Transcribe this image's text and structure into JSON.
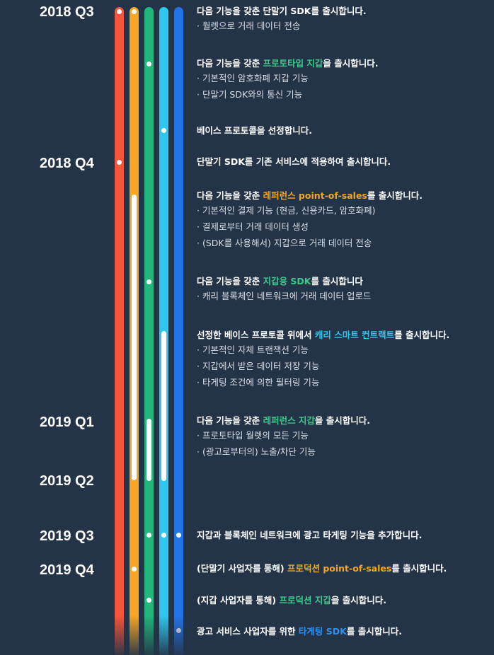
{
  "colors": {
    "background": "#243448",
    "track_red": "#f5553a",
    "track_orange": "#f5a623",
    "track_green": "#22b77a",
    "track_cyan": "#2ec8ee",
    "track_blue": "#2473e6",
    "highlight_green": "#3ec98a",
    "highlight_orange": "#f5a623",
    "highlight_cyan": "#2fc6ee",
    "highlight_blue": "#2f8ff0"
  },
  "quarters": [
    "2018 Q3",
    "2018 Q4",
    "2019 Q1",
    "2019 Q2",
    "2019 Q3",
    "2019 Q4"
  ],
  "entries": [
    {
      "title_pre": "다음 기능을 갖춘 단말기 SDK를 출시합니다.",
      "title_hl": "",
      "title_post": "",
      "hl": "",
      "items": [
        "· 월렛으로 거래 데이터 전송"
      ]
    },
    {
      "title_pre": "다음 기능을 갖춘 ",
      "title_hl": "프로토타입 지갑",
      "title_post": "을 출시합니다.",
      "hl": "green",
      "items": [
        "· 기본적인 암호화폐 지갑 기능",
        "· 단말기 SDK와의 통신 기능"
      ]
    },
    {
      "title_pre": "베이스 프로토콜을 선정합니다.",
      "title_hl": "",
      "title_post": "",
      "hl": "",
      "items": []
    },
    {
      "title_pre": "단말기 SDK를 기존 서비스에 적용하여 출시합니다.",
      "title_hl": "",
      "title_post": "",
      "hl": "",
      "items": []
    },
    {
      "title_pre": "다음 기능을 갖춘 ",
      "title_hl": "레퍼런스 point-of-sales",
      "title_post": "를 출시합니다.",
      "hl": "orange",
      "items": [
        "· 기본적인 결제 기능 (현금, 신용카드, 암호화폐)",
        "· 결제로부터 거래 데이터 생성",
        "· (SDK를 사용해서) 지갑으로 거래 데이터 전송"
      ]
    },
    {
      "title_pre": "다음 기능을 갖춘 ",
      "title_hl": "지갑용 SDK",
      "title_post": "를 출시합니다",
      "hl": "green",
      "items": [
        "· 캐리 블록체인 네트워크에 거래 데이터 업로드"
      ]
    },
    {
      "title_pre": "선정한 베이스 프로토콜 위에서 ",
      "title_hl": "캐리 스마트 컨트랙트",
      "title_post": "를 출시합니다.",
      "hl": "cyan",
      "items": [
        "· 기본적인 자체 트랜잭션 기능",
        "· 지갑에서 받은 데이터 저장 기능",
        "· 타게팅 조건에 의한 필터링 기능"
      ]
    },
    {
      "title_pre": "다음 기능을 갖춘 ",
      "title_hl": "레퍼런스 지갑",
      "title_post": "을 출시합니다.",
      "hl": "green",
      "items": [
        "· 프로토타입 월렛의 모든 기능",
        "· (광고로부터의) 노출/차단 기능"
      ]
    },
    {
      "title_pre": "지갑과 블록체인 네트워크에 광고 타게팅 기능을 추가합니다.",
      "title_hl": "",
      "title_post": "",
      "hl": "",
      "items": []
    },
    {
      "title_pre": "(단말기 사업자를 통해) ",
      "title_hl": "프로덕션 point-of-sales",
      "title_post": "를 출시합니다.",
      "hl": "orange",
      "items": []
    },
    {
      "title_pre": "(지갑 사업자를 통해) ",
      "title_hl": "프로덕션 지갑",
      "title_post": "을 출시합니다.",
      "hl": "green",
      "items": []
    },
    {
      "title_pre": "광고 서비스 사업자를 위한 ",
      "title_hl": "타게팅 SDK",
      "title_post": "를 출시합니다.",
      "hl": "blue",
      "items": []
    }
  ]
}
